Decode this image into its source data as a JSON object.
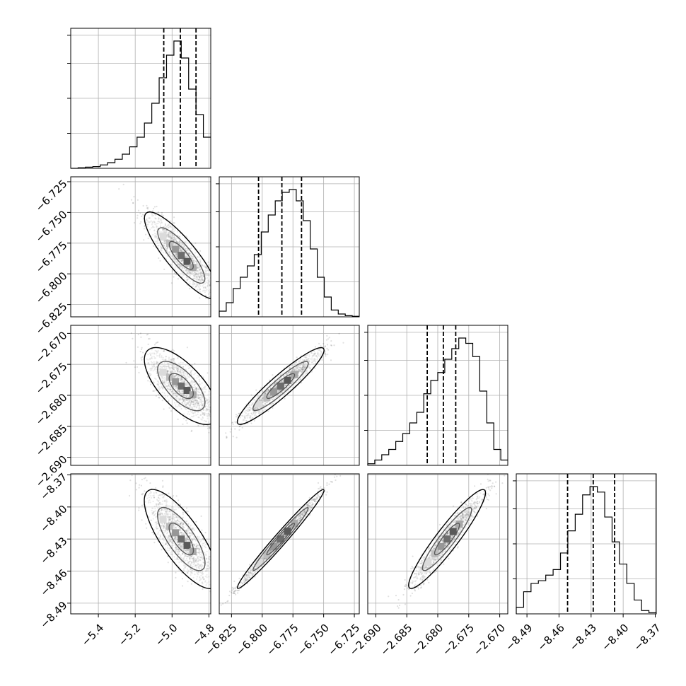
{
  "chart_data": {
    "type": "corner",
    "grid": true,
    "colors": {
      "line": "#000000",
      "grid": "#b0b0b0",
      "frame": "#000000"
    },
    "quantile_lines": "dashed",
    "params": [
      {
        "range": [
          -5.55,
          -4.79
        ],
        "ticks": [
          -5.4,
          -5.2,
          -5.0,
          -4.8
        ],
        "tick_labels": [
          "−5.4",
          "−5.2",
          "−5.0",
          "−4.8"
        ],
        "quantiles": [
          -5.045,
          -4.955,
          -4.87
        ],
        "mean": -4.95,
        "sd": 0.09,
        "skew": -0.06
      },
      {
        "range": [
          -6.835,
          -6.721
        ],
        "ticks": [
          -6.825,
          -6.8,
          -6.775,
          -6.75,
          -6.725
        ],
        "tick_labels": [
          "−6.825",
          "−6.800",
          "−6.775",
          "−6.750",
          "−6.725"
        ],
        "quantiles": [
          -6.803,
          -6.784,
          -6.768
        ],
        "mean": -6.785,
        "sd": 0.016,
        "skew": 0
      },
      {
        "range": [
          -2.6913,
          -2.6687
        ],
        "ticks": [
          -2.69,
          -2.685,
          -2.68,
          -2.675,
          -2.67
        ],
        "tick_labels": [
          "−2.690",
          "−2.685",
          "−2.680",
          "−2.675",
          "−2.670"
        ],
        "quantiles": [
          -2.6817,
          -2.6791,
          -2.6771
        ],
        "mean": -2.6785,
        "sd": 0.0028,
        "skew": 0.3
      },
      {
        "range": [
          -8.5,
          -8.369
        ],
        "ticks": [
          -8.49,
          -8.46,
          -8.43,
          -8.4,
          -8.37
        ],
        "tick_labels": [
          "−8.49",
          "−8.46",
          "−8.43",
          "−8.40",
          "−8.37"
        ],
        "quantiles": [
          -8.452,
          -8.428,
          -8.408
        ],
        "mean": -8.43,
        "sd": 0.021,
        "skew": 0
      }
    ],
    "histograms": [
      {
        "index": 0,
        "values": [
          0,
          1,
          2,
          3,
          6,
          10,
          16,
          25,
          38,
          55,
          80,
          115,
          160,
          200,
          225,
          195,
          140,
          95,
          55
        ]
      },
      {
        "index": 1,
        "values": [
          10,
          25,
          50,
          70,
          90,
          110,
          150,
          180,
          205,
          220,
          225,
          205,
          170,
          120,
          70,
          35,
          12,
          5,
          2,
          1
        ]
      },
      {
        "index": 2,
        "values": [
          3,
          10,
          20,
          30,
          45,
          60,
          80,
          100,
          135,
          160,
          175,
          200,
          220,
          240,
          230,
          205,
          140,
          80,
          30,
          10
        ]
      },
      {
        "index": 3,
        "values": [
          12,
          40,
          55,
          60,
          70,
          80,
          110,
          150,
          180,
          215,
          230,
          220,
          175,
          130,
          90,
          55,
          25,
          6,
          2
        ]
      }
    ],
    "pairs": [
      {
        "x_index": 0,
        "y_index": 1,
        "correlation": -0.88
      },
      {
        "x_index": 0,
        "y_index": 2,
        "correlation": -0.72
      },
      {
        "x_index": 1,
        "y_index": 2,
        "correlation": 0.95
      },
      {
        "x_index": 0,
        "y_index": 3,
        "correlation": -0.8
      },
      {
        "x_index": 1,
        "y_index": 3,
        "correlation": 0.99
      },
      {
        "x_index": 2,
        "y_index": 3,
        "correlation": 0.95
      }
    ]
  }
}
